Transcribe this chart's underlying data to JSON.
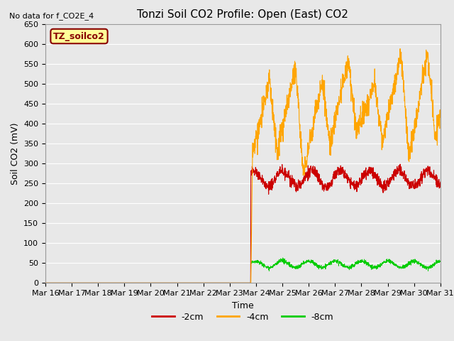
{
  "title": "Tonzi Soil CO2 Profile: Open (East) CO2",
  "no_data_text": "No data for f_CO2E_4",
  "legend_label": "TZ_soilco2",
  "xlabel": "Time",
  "ylabel": "Soil CO2 (mV)",
  "ylim": [
    0,
    650
  ],
  "yticks": [
    0,
    50,
    100,
    150,
    200,
    250,
    300,
    350,
    400,
    450,
    500,
    550,
    600,
    650
  ],
  "line_colors": {
    "m2cm": "#cc0000",
    "m4cm": "#ffa500",
    "m8cm": "#00cc00"
  },
  "line_labels": {
    "-2cm": "-2cm",
    "-4cm": "-4cm",
    "-8cm": "-8cm"
  },
  "fig_bg_color": "#e8e8e8",
  "plot_bg_color": "#e8e8e8",
  "grid_color": "#ffffff",
  "legend_bg": "#ffff99",
  "legend_edge": "#880000",
  "title_fontsize": 11,
  "axis_fontsize": 9,
  "tick_fontsize": 8
}
